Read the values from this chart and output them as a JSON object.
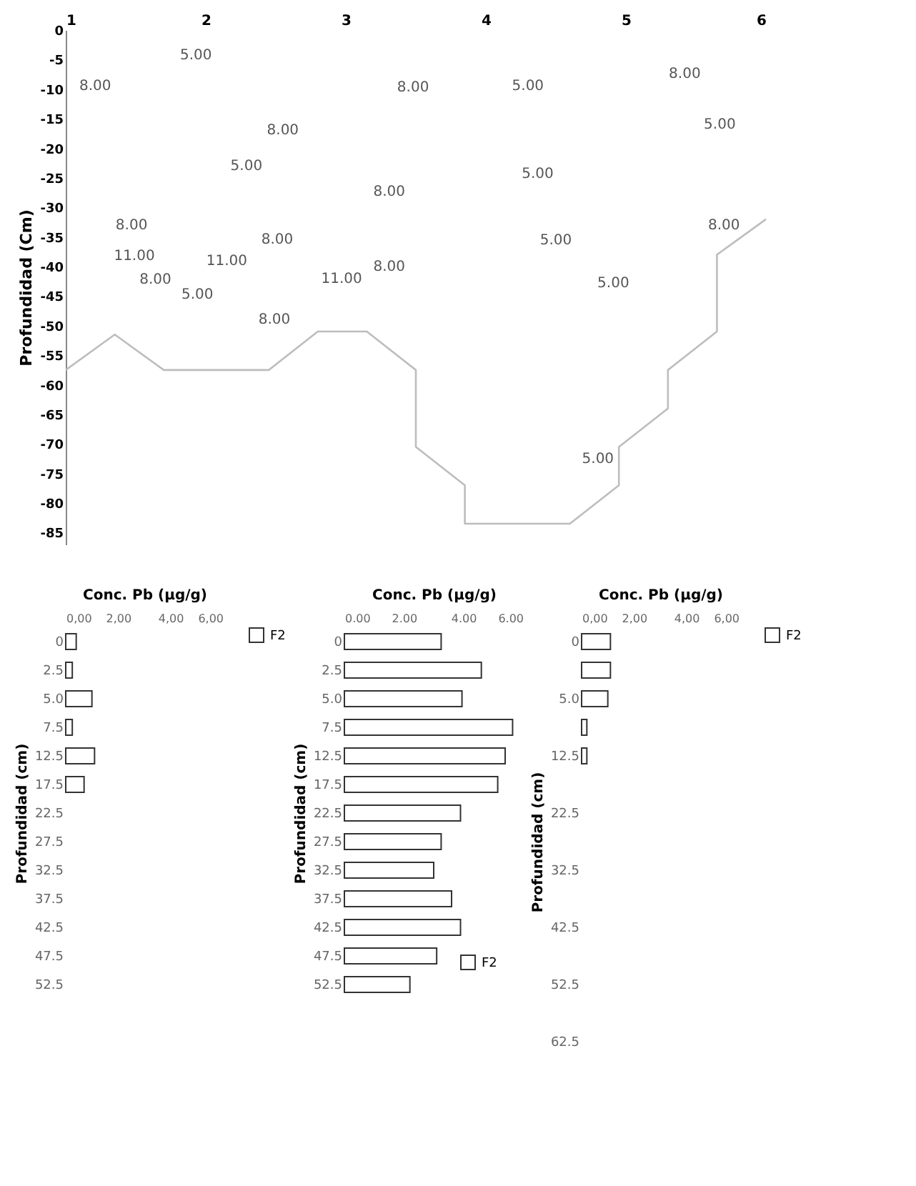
{
  "chart_data": [
    {
      "type": "line",
      "ylabel": "Profundidad (Cm)",
      "x": [
        1.0,
        1.35,
        1.7,
        2.45,
        2.8,
        3.15,
        3.5,
        3.5,
        3.85,
        3.85,
        4.6,
        4.95,
        4.95,
        5.3,
        5.3,
        5.65,
        5.65,
        6.0
      ],
      "series": [
        {
          "color": "#bdbdbd",
          "values": [
            -57.5,
            -51.5,
            -57.5,
            -57.5,
            -51,
            -51,
            -57.5,
            -70.5,
            -77,
            -83.5,
            -83.5,
            -77,
            -70.5,
            -64,
            -57.5,
            -51,
            -38,
            -32
          ]
        }
      ],
      "xlim": [
        1,
        6
      ],
      "xticks": [
        1,
        2,
        3,
        4,
        5,
        6
      ],
      "ylim": [
        -87,
        0
      ],
      "yticks": [
        0,
        -5,
        -10,
        -15,
        -20,
        -25,
        -30,
        -35,
        -40,
        -45,
        -50,
        -55,
        -60,
        -65,
        -70,
        -75,
        -80,
        -85
      ],
      "annotations": [
        "5.00",
        "8.00",
        "8.00",
        "5.00",
        "8.00",
        "5.00",
        "8.00",
        "5.00",
        "8.00",
        "5.00",
        "8.00",
        "8.00",
        "8.00",
        "5.00",
        "11.00",
        "11.00",
        "8.00",
        "8.00",
        "5.00",
        "11.00",
        "5.00",
        "8.00",
        "5.00"
      ]
    },
    {
      "type": "bar",
      "orientation": "horizontal",
      "xlabel": "Conc. Pb (µg/g)",
      "ylabel": "Profundidad (cm)",
      "legend": "right",
      "categories": [
        "0",
        "2.5",
        "5.0",
        "7.5",
        "12.5",
        "17.5",
        "22.5",
        "27.5",
        "32.5",
        "37.5",
        "42.5",
        "47.5",
        "52.5"
      ],
      "series": [
        {
          "name": "F2",
          "color": "#ffffff",
          "values": [
            0.4,
            0.25,
            1.0,
            0.25,
            1.1,
            0.7,
            null,
            null,
            null,
            null,
            null,
            null,
            null
          ]
        }
      ],
      "xlim": [
        0,
        6
      ],
      "xticks": [
        {
          "value": 0,
          "label": "0,00"
        },
        {
          "value": 2,
          "label": "2,00"
        },
        {
          "value": 4,
          "label": "4,00"
        },
        {
          "value": 6,
          "label": "6,00"
        }
      ]
    },
    {
      "type": "bar",
      "orientation": "horizontal",
      "xlabel": "Conc. Pb (µg/g)",
      "ylabel": "Profundidad (cm)",
      "legend": "bottom right",
      "categories": [
        "0",
        "2.5",
        "5.0",
        "7.5",
        "12.5",
        "17.5",
        "22.5",
        "27.5",
        "32.5",
        "37.5",
        "42.5",
        "47.5",
        "52.5"
      ],
      "series": [
        {
          "name": "F2",
          "color": "#ffffff",
          "values": [
            3.25,
            4.6,
            3.95,
            5.65,
            5.4,
            5.15,
            3.9,
            3.25,
            3.0,
            3.6,
            3.9,
            3.1,
            2.2
          ]
        }
      ],
      "xlim": [
        0,
        6
      ],
      "xticks": [
        {
          "value": 0,
          "label": "0.00"
        },
        {
          "value": 2,
          "label": "2.00"
        },
        {
          "value": 4,
          "label": "4.00"
        },
        {
          "value": 6,
          "label": "6.00"
        }
      ]
    },
    {
      "type": "bar",
      "orientation": "horizontal",
      "xlabel": "Conc. Pb (µg/g)",
      "ylabel": "Profundidad (cm)",
      "legend": "right",
      "categories": [
        "0",
        null,
        "5.0",
        null,
        "12.5",
        null,
        "22.5",
        null,
        "32.5",
        null,
        "42.5",
        null,
        "52.5",
        null,
        "62.5"
      ],
      "series": [
        {
          "name": "F2",
          "color": "#ffffff",
          "values": [
            1.1,
            1.1,
            1.0,
            0.2,
            0.2,
            null,
            null,
            null,
            null,
            null,
            null,
            null,
            null,
            null,
            null
          ]
        }
      ],
      "xlim": [
        0,
        6
      ],
      "xticks": [
        {
          "value": 0,
          "label": "0,00"
        },
        {
          "value": 2,
          "label": "2,00"
        },
        {
          "value": 4,
          "label": "4,00"
        },
        {
          "value": 6,
          "label": "6,00"
        }
      ]
    }
  ]
}
